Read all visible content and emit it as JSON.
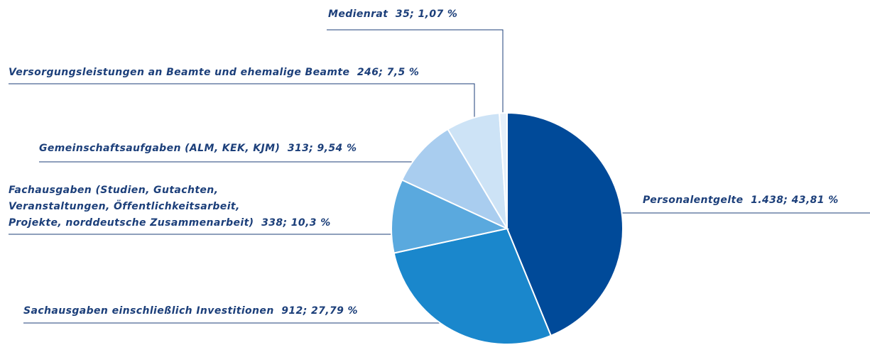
{
  "chart_data": {
    "type": "pie",
    "categories": [
      "Personalentgelte",
      "Sachausgaben einschließlich Investitionen",
      "Fachausgaben (Studien, Gutachten,\nVeranstaltungen, Öffentlichkeitsarbeit,\nProjekte, norddeutsche Zusammenarbeit)",
      "Gemeinschaftsaufgaben (ALM, KEK, KJM)",
      "Versorgungsleistungen an Beamte und ehemalige Beamte",
      "Medienrat"
    ],
    "values": [
      1438,
      912,
      338,
      313,
      246,
      35
    ],
    "value_labels": [
      "1.438",
      "912",
      "338",
      "313",
      "246",
      "35"
    ],
    "percentages": [
      43.81,
      27.79,
      10.3,
      9.54,
      7.5,
      1.07
    ],
    "percentage_labels": [
      "43,81 %",
      "27,79 %",
      "10,3 %",
      "9,54 %",
      "7,5 %",
      "1,07 %"
    ],
    "label_separator": ";",
    "colors": [
      "#004a99",
      "#1a87cc",
      "#5aa9de",
      "#a9cdef",
      "#cde3f6",
      "#e6f0fa"
    ]
  }
}
